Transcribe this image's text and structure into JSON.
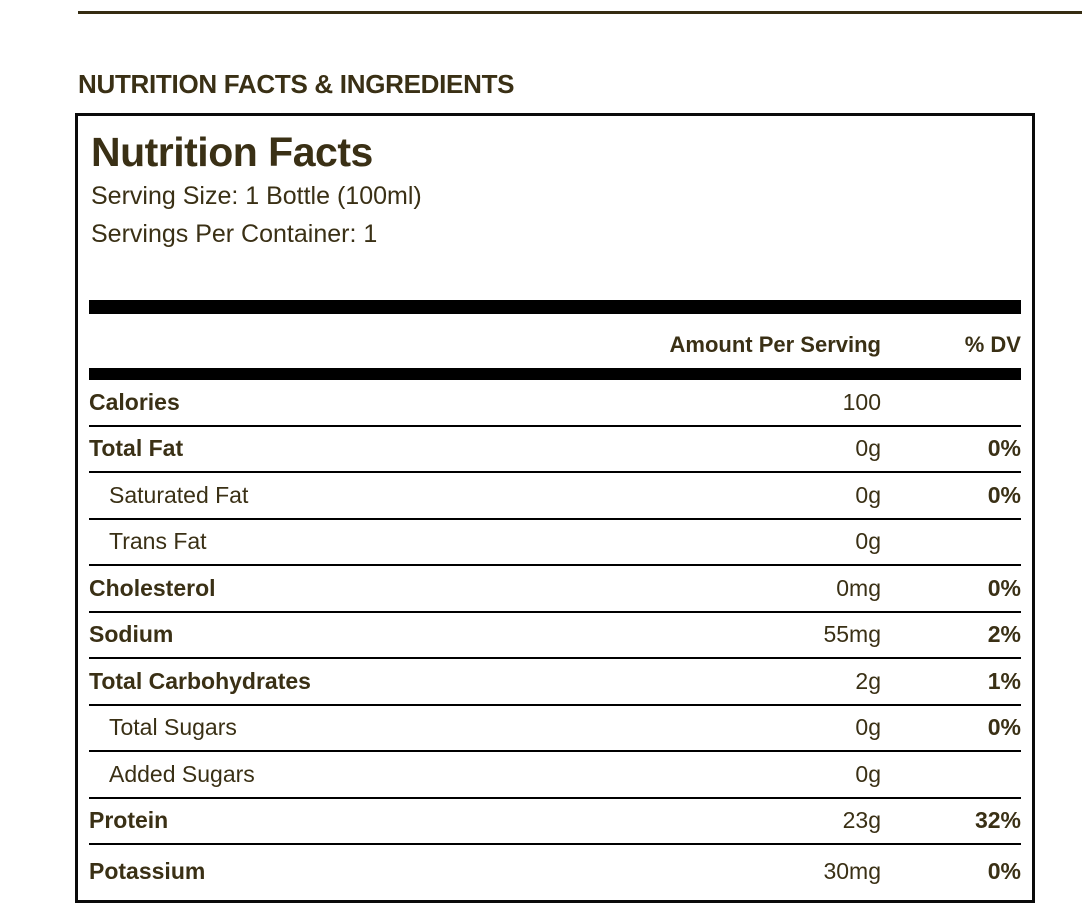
{
  "page": {
    "section_title": "NUTRITION FACTS & INGREDIENTS"
  },
  "nutrition_label": {
    "title": "Nutrition Facts",
    "serving_size": "Serving Size: 1 Bottle (100ml)",
    "servings_per_container": "Servings Per Container: 1",
    "columns": {
      "amount_header": "Amount Per Serving",
      "dv_header": "% DV"
    },
    "rows": [
      {
        "label": "Calories",
        "amount": "100",
        "dv": "",
        "bold": true,
        "indent": false
      },
      {
        "label": "Total Fat",
        "amount": "0g",
        "dv": "0%",
        "bold": true,
        "indent": false
      },
      {
        "label": "Saturated Fat",
        "amount": "0g",
        "dv": "0%",
        "bold": false,
        "indent": true
      },
      {
        "label": "Trans Fat",
        "amount": "0g",
        "dv": "",
        "bold": false,
        "indent": true
      },
      {
        "label": "Cholesterol",
        "amount": "0mg",
        "dv": "0%",
        "bold": true,
        "indent": false
      },
      {
        "label": "Sodium",
        "amount": "55mg",
        "dv": "2%",
        "bold": true,
        "indent": false
      },
      {
        "label": "Total Carbohydrates",
        "amount": "2g",
        "dv": "1%",
        "bold": true,
        "indent": false
      },
      {
        "label": "Total Sugars",
        "amount": "0g",
        "dv": "0%",
        "bold": false,
        "indent": true
      },
      {
        "label": "Added Sugars",
        "amount": "0g",
        "dv": "",
        "bold": false,
        "indent": true
      },
      {
        "label": "Protein",
        "amount": "23g",
        "dv": "32%",
        "bold": true,
        "indent": false
      },
      {
        "label": "Potassium",
        "amount": "30mg",
        "dv": "0%",
        "bold": true,
        "indent": false
      }
    ]
  },
  "colors": {
    "text": "#3A3015",
    "rule": "#352C12",
    "bar": "#000000",
    "background": "#FFFFFF"
  }
}
